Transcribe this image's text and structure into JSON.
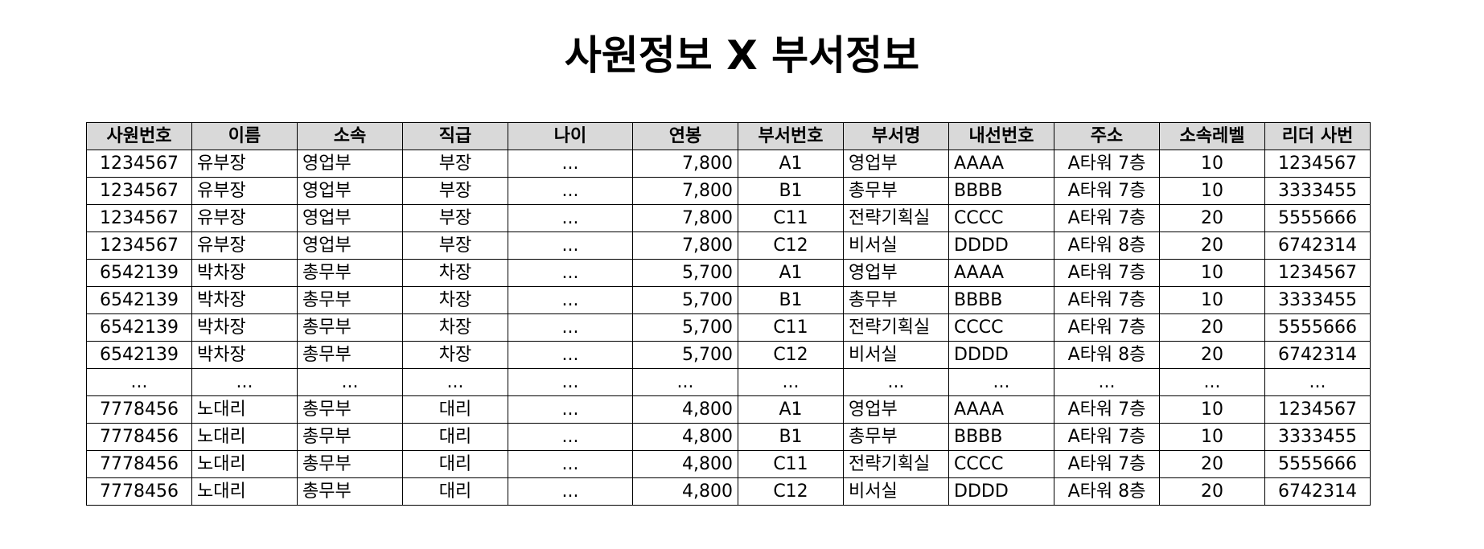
{
  "title": "사원정보 X 부서정보",
  "table": {
    "columns": [
      {
        "label": "사원번호",
        "align": "c"
      },
      {
        "label": "이름",
        "align": "l"
      },
      {
        "label": "소속",
        "align": "l"
      },
      {
        "label": "직급",
        "align": "c"
      },
      {
        "label": "나이",
        "align": "c"
      },
      {
        "label": "연봉",
        "align": "r"
      },
      {
        "label": "부서번호",
        "align": "c"
      },
      {
        "label": "부서명",
        "align": "l"
      },
      {
        "label": "내선번호",
        "align": "l"
      },
      {
        "label": "주소",
        "align": "c"
      },
      {
        "label": "소속레벨",
        "align": "c"
      },
      {
        "label": "리더 사번",
        "align": "c"
      }
    ],
    "rows": [
      [
        "1234567",
        "유부장",
        "영업부",
        "부장",
        "...",
        "7,800",
        "A1",
        "영업부",
        "AAAA",
        "A타워 7층",
        "10",
        "1234567"
      ],
      [
        "1234567",
        "유부장",
        "영업부",
        "부장",
        "...",
        "7,800",
        "B1",
        "총무부",
        "BBBB",
        "A타워 7층",
        "10",
        "3333455"
      ],
      [
        "1234567",
        "유부장",
        "영업부",
        "부장",
        "...",
        "7,800",
        "C11",
        "전략기획실",
        "CCCC",
        "A타워 7층",
        "20",
        "5555666"
      ],
      [
        "1234567",
        "유부장",
        "영업부",
        "부장",
        "...",
        "7,800",
        "C12",
        "비서실",
        "DDDD",
        "A타워 8층",
        "20",
        "6742314"
      ],
      [
        "6542139",
        "박차장",
        "총무부",
        "차장",
        "...",
        "5,700",
        "A1",
        "영업부",
        "AAAA",
        "A타워 7층",
        "10",
        "1234567"
      ],
      [
        "6542139",
        "박차장",
        "총무부",
        "차장",
        "...",
        "5,700",
        "B1",
        "총무부",
        "BBBB",
        "A타워 7층",
        "10",
        "3333455"
      ],
      [
        "6542139",
        "박차장",
        "총무부",
        "차장",
        "...",
        "5,700",
        "C11",
        "전략기획실",
        "CCCC",
        "A타워 7층",
        "20",
        "5555666"
      ],
      [
        "6542139",
        "박차장",
        "총무부",
        "차장",
        "...",
        "5,700",
        "C12",
        "비서실",
        "DDDD",
        "A타워 8층",
        "20",
        "6742314"
      ],
      [
        "...",
        "...",
        "...",
        "...",
        "...",
        "...",
        "...",
        "...",
        "...",
        "...",
        "...",
        "..."
      ],
      [
        "7778456",
        "노대리",
        "총무부",
        "대리",
        "...",
        "4,800",
        "A1",
        "영업부",
        "AAAA",
        "A타워 7층",
        "10",
        "1234567"
      ],
      [
        "7778456",
        "노대리",
        "총무부",
        "대리",
        "...",
        "4,800",
        "B1",
        "총무부",
        "BBBB",
        "A타워 7층",
        "10",
        "3333455"
      ],
      [
        "7778456",
        "노대리",
        "총무부",
        "대리",
        "...",
        "4,800",
        "C11",
        "전략기획실",
        "CCCC",
        "A타워 7층",
        "20",
        "5555666"
      ],
      [
        "7778456",
        "노대리",
        "총무부",
        "대리",
        "...",
        "4,800",
        "C12",
        "비서실",
        "DDDD",
        "A타워 8층",
        "20",
        "6742314"
      ]
    ]
  }
}
